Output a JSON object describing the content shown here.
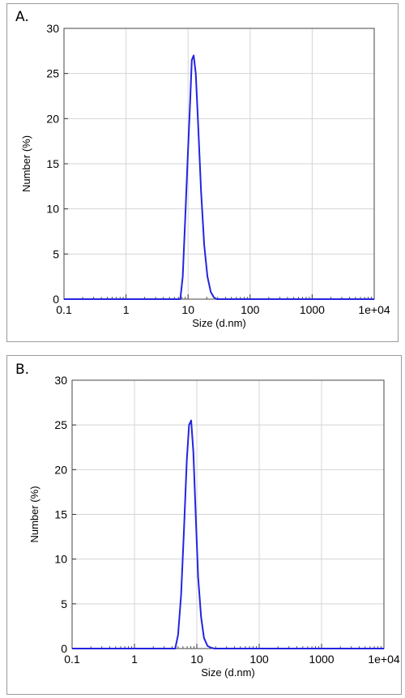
{
  "chart_data": [
    {
      "panel": "A.",
      "type": "line",
      "xlabel": "Size (d.nm)",
      "ylabel": "Number (%)",
      "xscale": "log",
      "xlim": [
        0.1,
        10000
      ],
      "ylim": [
        0,
        30
      ],
      "x_ticks": [
        "0.1",
        "1",
        "10",
        "100",
        "1000",
        "1e+04"
      ],
      "y_ticks": [
        "0",
        "5",
        "10",
        "15",
        "20",
        "25",
        "30"
      ],
      "grid": true,
      "line_color": "#2424e0",
      "x": [
        0.1,
        7.5,
        8.2,
        9.0,
        9.9,
        10.8,
        11.5,
        12.3,
        13.3,
        14.6,
        16.2,
        18.2,
        20.5,
        23.2,
        26.0,
        29.0,
        10000
      ],
      "y": [
        0,
        0,
        2.5,
        9.0,
        16.0,
        22.0,
        26.5,
        27.0,
        25.0,
        19.0,
        12.0,
        6.0,
        2.5,
        0.8,
        0.2,
        0,
        0
      ]
    },
    {
      "panel": "B.",
      "type": "line",
      "xlabel": "Size (d.nm)",
      "ylabel": "Number (%)",
      "xscale": "log",
      "xlim": [
        0.1,
        10000
      ],
      "ylim": [
        0,
        30
      ],
      "x_ticks": [
        "0.1",
        "1",
        "10",
        "100",
        "1000",
        "1e+04"
      ],
      "y_ticks": [
        "0",
        "5",
        "10",
        "15",
        "20",
        "25",
        "30"
      ],
      "grid": true,
      "line_color": "#2424e0",
      "x": [
        0.1,
        4.5,
        5.0,
        5.6,
        6.2,
        6.9,
        7.5,
        8.1,
        8.8,
        9.6,
        10.5,
        11.7,
        13.0,
        14.8,
        16.8,
        19.0,
        10000
      ],
      "y": [
        0,
        0,
        1.5,
        6.0,
        13.0,
        21.0,
        25.0,
        25.5,
        22.0,
        15.0,
        8.0,
        3.5,
        1.2,
        0.3,
        0.1,
        0,
        0
      ]
    }
  ]
}
